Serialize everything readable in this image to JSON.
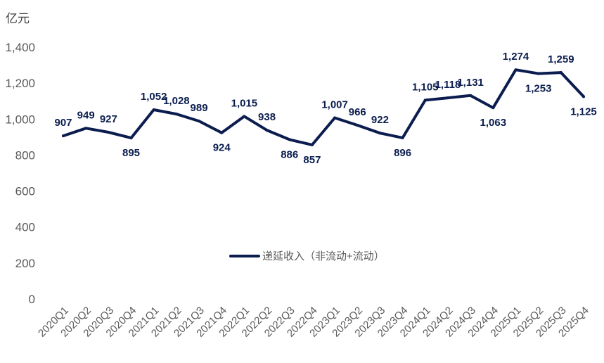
{
  "chart_data": {
    "type": "line",
    "unit_label": "亿元",
    "categories": [
      "2020Q1",
      "2020Q2",
      "2020Q3",
      "2020Q4",
      "2021Q1",
      "2021Q2",
      "2021Q3",
      "2021Q4",
      "2022Q1",
      "2022Q2",
      "2022Q3",
      "2022Q4",
      "2023Q1",
      "2023Q2",
      "2023Q3",
      "2023Q4",
      "2024Q1",
      "2024Q2",
      "2024Q3",
      "2024Q4",
      "2025Q1",
      "2025Q2",
      "2025Q3",
      "2025Q4"
    ],
    "series": [
      {
        "name": "递延收入（非流动+流动）",
        "color": "#0b1d4f",
        "values": [
          907,
          949,
          927,
          895,
          1052,
          1028,
          989,
          924,
          1015,
          938,
          886,
          857,
          1007,
          966,
          922,
          896,
          1105,
          1118,
          1131,
          1063,
          1274,
          1253,
          1259,
          1125
        ],
        "labels": [
          "907",
          "949",
          "927",
          "895",
          "1,052",
          "1,028",
          "989",
          "924",
          "1,015",
          "938",
          "886",
          "857",
          "1,007",
          "966",
          "922",
          "896",
          "1,105",
          "1,118",
          "1,131",
          "1,063",
          "1,274",
          "1,253",
          "1,259",
          "1,125"
        ],
        "label_pos": [
          "above",
          "above",
          "above",
          "below",
          "above",
          "above",
          "above",
          "below",
          "above",
          "above",
          "below",
          "below",
          "above",
          "above",
          "above",
          "below",
          "above",
          "above",
          "above",
          "below",
          "above",
          "below",
          "above",
          "below"
        ]
      }
    ],
    "y_ticks": [
      "0",
      "200",
      "400",
      "600",
      "800",
      "1,000",
      "1,200",
      "1,400"
    ],
    "ylim": [
      0,
      1400
    ],
    "grid": false,
    "legend_position": "center"
  }
}
